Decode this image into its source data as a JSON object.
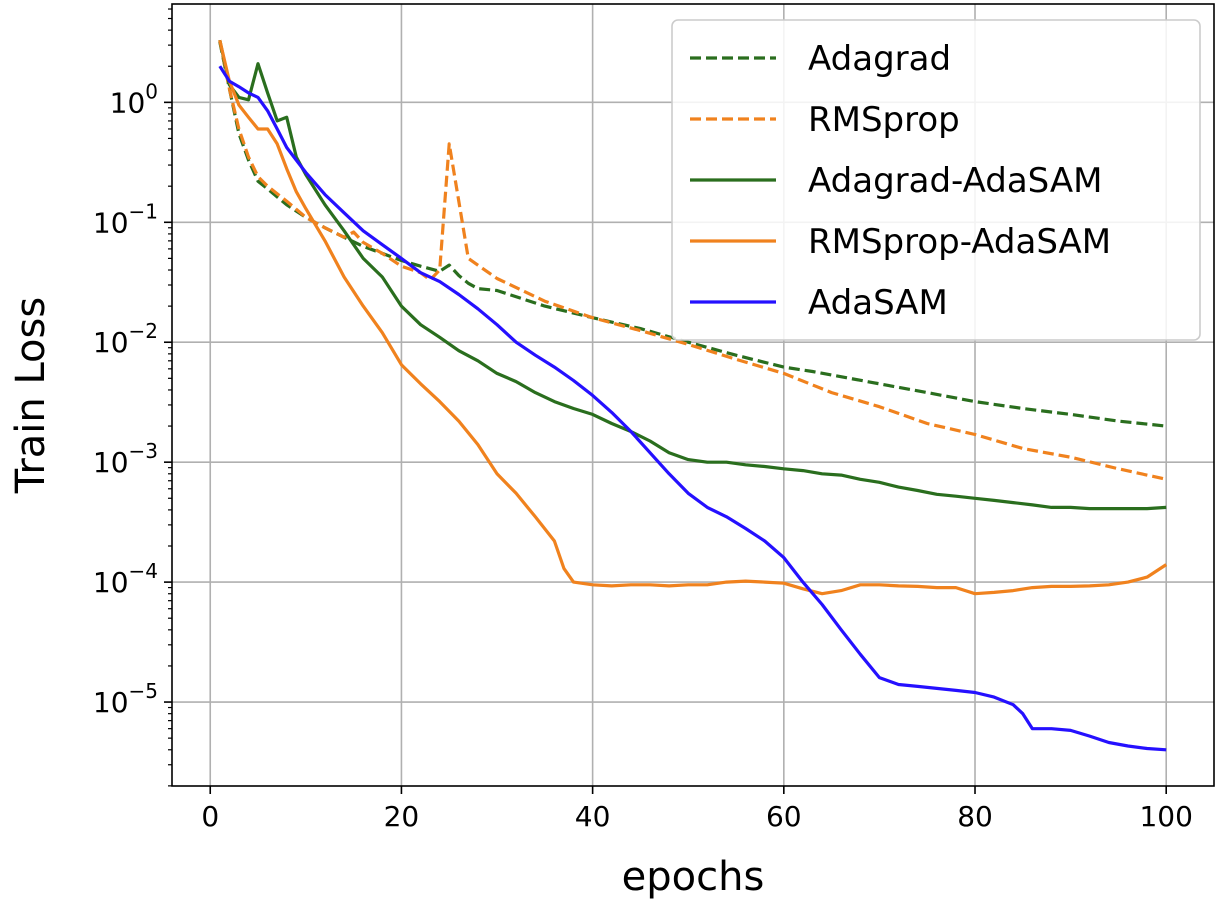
{
  "chart_data": {
    "type": "line",
    "title": "",
    "xlabel": "epochs",
    "ylabel": "Train Loss",
    "xlim": [
      -4,
      105
    ],
    "ylim_log10": [
      -5.7,
      0.82
    ],
    "yscale": "log",
    "grid": true,
    "legend_position": "top-right",
    "x_ticks": [
      0,
      20,
      40,
      60,
      80,
      100
    ],
    "x_tick_labels": [
      "0",
      "20",
      "40",
      "60",
      "80",
      "100"
    ],
    "y_ticks": [
      0,
      -1,
      -2,
      -3,
      -4,
      -5
    ],
    "y_tick_labels": [
      {
        "base": "10",
        "exp": "0"
      },
      {
        "base": "10",
        "exp": "−1"
      },
      {
        "base": "10",
        "exp": "−2"
      },
      {
        "base": "10",
        "exp": "−3"
      },
      {
        "base": "10",
        "exp": "−4"
      },
      {
        "base": "10",
        "exp": "−5"
      }
    ],
    "series": [
      {
        "name": "Adagrad",
        "color": "#2a6e1e",
        "dash": true,
        "x": [
          1,
          2,
          3,
          4,
          5,
          6,
          8,
          10,
          12,
          14,
          16,
          18,
          20,
          22,
          24,
          25,
          26,
          27,
          28,
          30,
          35,
          40,
          45,
          50,
          55,
          60,
          63,
          70,
          75,
          80,
          85,
          90,
          95,
          100
        ],
        "y": [
          3.2,
          1.3,
          0.55,
          0.33,
          0.22,
          0.19,
          0.14,
          0.11,
          0.09,
          0.075,
          0.063,
          0.055,
          0.048,
          0.043,
          0.039,
          0.044,
          0.036,
          0.031,
          0.028,
          0.027,
          0.02,
          0.016,
          0.013,
          0.01,
          0.0078,
          0.0062,
          0.0057,
          0.0045,
          0.0038,
          0.0032,
          0.0028,
          0.0025,
          0.0022,
          0.002
        ]
      },
      {
        "name": "RMSprop",
        "color": "#f0821e",
        "dash": true,
        "x": [
          1,
          2,
          3,
          4,
          5,
          6,
          8,
          10,
          12,
          14,
          15,
          16,
          18,
          20,
          22,
          23,
          24,
          25,
          26,
          27,
          30,
          35,
          40,
          45,
          50,
          55,
          60,
          65,
          70,
          75,
          80,
          85,
          90,
          95,
          100
        ],
        "y": [
          3.3,
          1.3,
          0.6,
          0.35,
          0.24,
          0.2,
          0.15,
          0.11,
          0.09,
          0.075,
          0.083,
          0.068,
          0.055,
          0.043,
          0.038,
          0.033,
          0.04,
          0.45,
          0.15,
          0.05,
          0.034,
          0.022,
          0.016,
          0.0125,
          0.0096,
          0.0072,
          0.0055,
          0.0038,
          0.0029,
          0.0021,
          0.0017,
          0.0013,
          0.0011,
          0.00088,
          0.00072
        ]
      },
      {
        "name": "Adagrad-AdaSAM",
        "color": "#2a6e1e",
        "dash": false,
        "x": [
          1,
          2,
          3,
          4,
          5,
          6,
          7,
          8,
          9,
          10,
          12,
          14,
          16,
          18,
          20,
          22,
          24,
          26,
          28,
          30,
          32,
          34,
          36,
          38,
          40,
          42,
          44,
          46,
          48,
          50,
          52,
          54,
          56,
          58,
          60,
          62,
          64,
          66,
          68,
          70,
          72,
          74,
          76,
          78,
          80,
          82,
          84,
          86,
          88,
          90,
          92,
          94,
          96,
          98,
          100
        ],
        "y": [
          3.3,
          1.4,
          1.1,
          1.05,
          2.1,
          1.2,
          0.7,
          0.75,
          0.35,
          0.25,
          0.14,
          0.085,
          0.05,
          0.035,
          0.02,
          0.014,
          0.011,
          0.0085,
          0.007,
          0.0055,
          0.0047,
          0.0038,
          0.0032,
          0.0028,
          0.0025,
          0.0021,
          0.0018,
          0.0015,
          0.0012,
          0.00105,
          0.001,
          0.001,
          0.00095,
          0.00092,
          0.00088,
          0.00085,
          0.0008,
          0.00078,
          0.00072,
          0.00068,
          0.00062,
          0.00058,
          0.00054,
          0.00052,
          0.0005,
          0.00048,
          0.00046,
          0.00044,
          0.00042,
          0.00042,
          0.00041,
          0.00041,
          0.00041,
          0.00041,
          0.00042
        ]
      },
      {
        "name": "RMSprop-AdaSAM",
        "color": "#f0821e",
        "dash": false,
        "x": [
          1,
          2,
          3,
          4,
          5,
          6,
          7,
          8,
          9,
          10,
          12,
          14,
          16,
          18,
          20,
          22,
          24,
          26,
          28,
          30,
          32,
          34,
          36,
          37,
          38,
          40,
          42,
          44,
          46,
          48,
          50,
          52,
          54,
          56,
          58,
          60,
          62,
          64,
          66,
          68,
          70,
          72,
          74,
          76,
          78,
          80,
          82,
          84,
          86,
          88,
          90,
          92,
          94,
          96,
          98,
          100
        ],
        "y": [
          3.3,
          1.5,
          0.95,
          0.75,
          0.6,
          0.6,
          0.45,
          0.28,
          0.18,
          0.13,
          0.07,
          0.035,
          0.02,
          0.012,
          0.0065,
          0.0045,
          0.0032,
          0.0022,
          0.0014,
          0.0008,
          0.00055,
          0.00035,
          0.00022,
          0.00013,
          0.0001,
          9.5e-05,
          9.3e-05,
          9.5e-05,
          9.5e-05,
          9.3e-05,
          9.5e-05,
          9.5e-05,
          0.0001,
          0.000102,
          0.0001,
          9.8e-05,
          8.8e-05,
          8e-05,
          8.5e-05,
          9.5e-05,
          9.5e-05,
          9.3e-05,
          9.2e-05,
          9e-05,
          9e-05,
          8e-05,
          8.2e-05,
          8.5e-05,
          9e-05,
          9.2e-05,
          9.2e-05,
          9.3e-05,
          9.5e-05,
          0.0001,
          0.00011,
          0.00014
        ]
      },
      {
        "name": "AdaSAM",
        "color": "#2510ff",
        "dash": false,
        "x": [
          1,
          2,
          3,
          4,
          5,
          6,
          7,
          8,
          9,
          10,
          12,
          14,
          16,
          18,
          20,
          22,
          24,
          26,
          28,
          30,
          32,
          34,
          36,
          38,
          40,
          42,
          44,
          46,
          48,
          50,
          52,
          54,
          56,
          58,
          60,
          62,
          64,
          66,
          68,
          70,
          72,
          74,
          76,
          78,
          80,
          82,
          84,
          85,
          86,
          88,
          90,
          92,
          94,
          96,
          98,
          100
        ],
        "y": [
          2.0,
          1.5,
          1.35,
          1.2,
          1.1,
          0.85,
          0.6,
          0.42,
          0.33,
          0.26,
          0.17,
          0.12,
          0.085,
          0.065,
          0.05,
          0.038,
          0.032,
          0.025,
          0.019,
          0.014,
          0.01,
          0.0078,
          0.0062,
          0.0048,
          0.0036,
          0.0026,
          0.0018,
          0.0012,
          0.0008,
          0.00055,
          0.00042,
          0.00035,
          0.00028,
          0.00022,
          0.00016,
          0.0001,
          6.5e-05,
          4e-05,
          2.5e-05,
          1.6e-05,
          1.4e-05,
          1.35e-05,
          1.3e-05,
          1.25e-05,
          1.2e-05,
          1.1e-05,
          9.5e-06,
          8e-06,
          6e-06,
          6e-06,
          5.8e-06,
          5.2e-06,
          4.6e-06,
          4.3e-06,
          4.1e-06,
          4e-06
        ]
      }
    ]
  }
}
